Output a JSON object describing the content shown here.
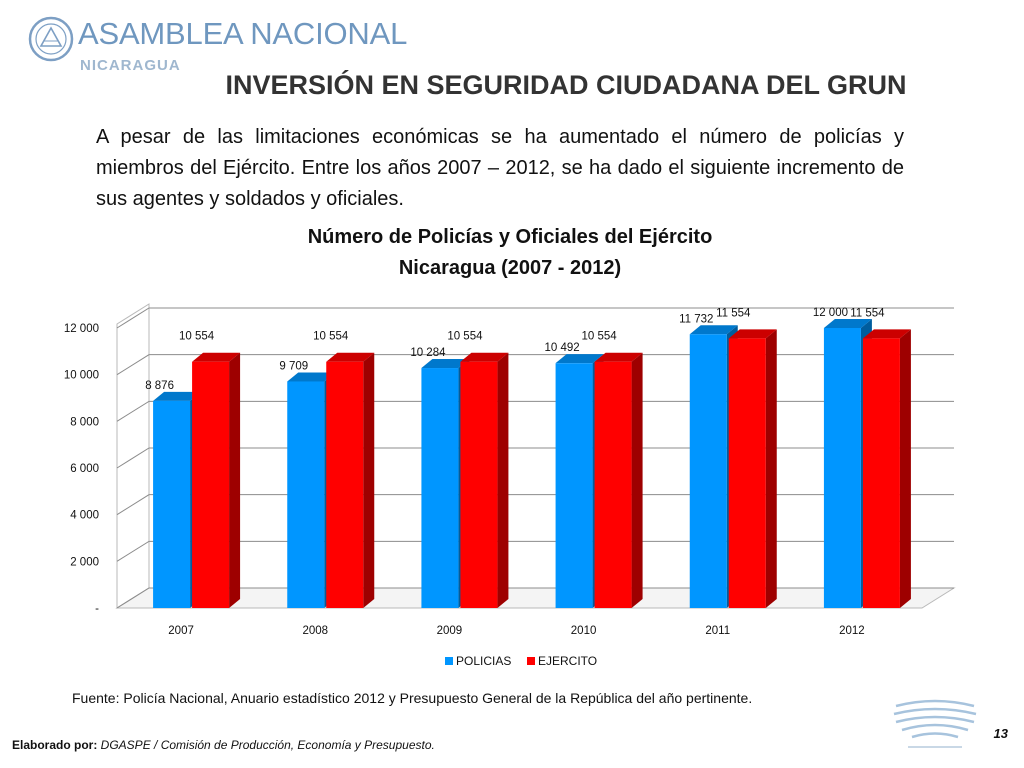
{
  "header": {
    "org_name": "ASAMBLEA NACIONAL",
    "org_sub": "NICARAGUA",
    "slide_title": "INVERSIÓN EN SEGURIDAD CIUDADANA DEL GRUN"
  },
  "intro_text": "A pesar de las limitaciones económicas se ha aumentado el número de policías y miembros del Ejército. Entre los años 2007 – 2012, se ha dado el siguiente incremento de sus agentes y soldados y oficiales.",
  "chart_data": {
    "type": "bar",
    "title_line1": "Número de Policías y Oficiales del Ejército",
    "title_line2": "Nicaragua (2007 - 2012)",
    "categories": [
      "2007",
      "2008",
      "2009",
      "2010",
      "2011",
      "2012"
    ],
    "series": [
      {
        "name": "POLICIAS",
        "color": "#0096ff",
        "values": [
          8876,
          9709,
          10284,
          10492,
          11732,
          12000
        ],
        "labels": [
          "8 876",
          "9 709",
          "10 284",
          "10 492",
          "11 732",
          "12 000"
        ]
      },
      {
        "name": "EJERCITO",
        "color": "#ff0000",
        "values": [
          10554,
          10554,
          10554,
          10554,
          11554,
          11554
        ],
        "labels": [
          "10 554",
          "10 554",
          "10 554",
          "10 554",
          "11 554",
          "11 554"
        ]
      }
    ],
    "y_ticks": [
      0,
      2000,
      4000,
      6000,
      8000,
      10000,
      12000
    ],
    "y_tick_labels": [
      "-",
      "2 000",
      "4 000",
      "6 000",
      "8 000",
      "10 000",
      "12 000"
    ],
    "ylim": [
      0,
      12000
    ],
    "grid": true,
    "legend_position": "bottom",
    "style": "3d-clustered-column"
  },
  "source_text": "Fuente: Policía Nacional, Anuario estadístico 2012 y Presupuesto General de la República del año pertinente.",
  "footer": {
    "label": "Elaborado por:",
    "text": " DGASPE / Comisión de Producción, Economía y Presupuesto.",
    "page_number": "13"
  }
}
